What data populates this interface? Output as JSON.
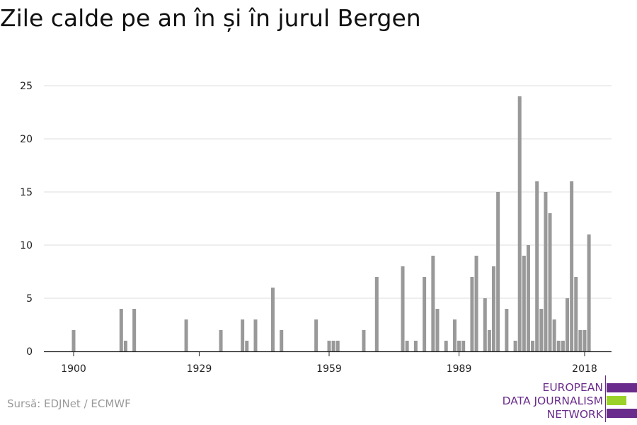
{
  "title": "Zile calde pe an în și în jurul Bergen",
  "source": "Sursă: EDJNet / ECMWF",
  "logo": {
    "lines": [
      "EUROPEAN",
      "DATA JOURNALISM",
      "NETWORK"
    ],
    "colors": {
      "purple": "#6a2c8c",
      "green": "#9ad22a"
    }
  },
  "chart_data": {
    "type": "bar",
    "title": "Zile calde pe an în și în jurul Bergen",
    "xlabel": "",
    "ylabel": "",
    "xlim": [
      1894,
      2024
    ],
    "ylim": [
      0,
      25
    ],
    "yticks": [
      0,
      5,
      10,
      15,
      20,
      25
    ],
    "xticks": [
      1900,
      1929,
      1959,
      1989,
      2018
    ],
    "grid": true,
    "bar_color": "#999999",
    "x": [
      1900,
      1911,
      1912,
      1914,
      1926,
      1934,
      1939,
      1940,
      1942,
      1946,
      1948,
      1956,
      1959,
      1960,
      1961,
      1967,
      1970,
      1976,
      1977,
      1979,
      1981,
      1983,
      1984,
      1986,
      1988,
      1989,
      1990,
      1992,
      1993,
      1995,
      1996,
      1997,
      1998,
      2000,
      2002,
      2003,
      2004,
      2005,
      2006,
      2007,
      2008,
      2009,
      2010,
      2011,
      2012,
      2013,
      2014,
      2015,
      2016,
      2017,
      2018,
      2019
    ],
    "values": [
      2,
      4,
      1,
      4,
      3,
      2,
      3,
      1,
      3,
      6,
      2,
      3,
      1,
      1,
      1,
      2,
      7,
      8,
      1,
      1,
      7,
      9,
      4,
      1,
      3,
      1,
      1,
      7,
      9,
      5,
      2,
      8,
      15,
      4,
      1,
      24,
      9,
      10,
      1,
      16,
      4,
      15,
      13,
      3,
      1,
      1,
      5,
      16,
      7,
      2,
      2,
      11
    ]
  }
}
